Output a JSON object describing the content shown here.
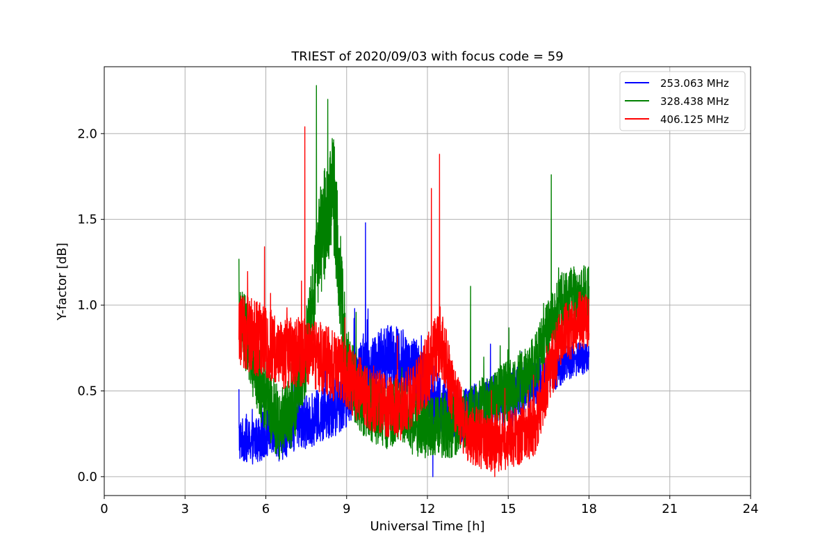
{
  "chart_data": {
    "type": "line",
    "title": "TRIEST of 2020/09/03 with focus code = 59",
    "xlabel": "Universal Time [h]",
    "ylabel": "Y-factor [dB]",
    "xlim": [
      0,
      24
    ],
    "ylim": [
      -0.11,
      2.39
    ],
    "xticks": [
      0,
      3,
      6,
      9,
      12,
      15,
      18,
      21,
      24
    ],
    "yticks": [
      0.0,
      0.5,
      1.0,
      1.5,
      2.0
    ],
    "xtick_labels": [
      "0",
      "3",
      "6",
      "9",
      "12",
      "15",
      "18",
      "21",
      "24"
    ],
    "ytick_labels": [
      "0.0",
      "0.5",
      "1.0",
      "1.5",
      "2.0"
    ],
    "grid": true,
    "legend_position": "top-right",
    "series": [
      {
        "name": "253.063 MHz",
        "color": "#0000ff",
        "x": [
          5.0,
          5.5,
          6.0,
          6.5,
          7.0,
          7.5,
          8.0,
          8.5,
          9.0,
          9.5,
          10.0,
          10.5,
          11.0,
          11.5,
          12.0,
          12.5,
          13.0,
          13.5,
          14.0,
          14.5,
          15.0,
          15.5,
          16.0,
          16.5,
          17.0,
          17.5,
          18.0
        ],
        "y": [
          0.22,
          0.2,
          0.25,
          0.23,
          0.3,
          0.32,
          0.35,
          0.4,
          0.48,
          0.6,
          0.65,
          0.7,
          0.68,
          0.62,
          0.55,
          0.4,
          0.38,
          0.35,
          0.38,
          0.42,
          0.45,
          0.5,
          0.55,
          0.6,
          0.65,
          0.68,
          0.7
        ],
        "noise": [
          0.08,
          0.08,
          0.09,
          0.09,
          0.1,
          0.1,
          0.1,
          0.11,
          0.12,
          0.12,
          0.12,
          0.12,
          0.12,
          0.12,
          0.13,
          0.12,
          0.12,
          0.11,
          0.11,
          0.11,
          0.11,
          0.1,
          0.09,
          0.08,
          0.07,
          0.06,
          0.06
        ],
        "spikes": [
          [
            5.0,
            0.51
          ],
          [
            9.7,
            1.48
          ],
          [
            12.2,
            0.0
          ],
          [
            9.3,
            0.98
          ]
        ]
      },
      {
        "name": "328.438 MHz",
        "color": "#008000",
        "x": [
          5.0,
          5.5,
          6.0,
          6.5,
          7.0,
          7.5,
          8.0,
          8.5,
          9.0,
          9.5,
          10.0,
          10.5,
          11.0,
          11.5,
          12.0,
          12.5,
          13.0,
          13.5,
          14.0,
          14.5,
          15.0,
          15.5,
          16.0,
          16.5,
          17.0,
          17.5,
          18.0
        ],
        "y": [
          0.95,
          0.7,
          0.45,
          0.3,
          0.38,
          0.7,
          1.35,
          1.7,
          0.65,
          0.45,
          0.38,
          0.35,
          0.4,
          0.3,
          0.28,
          0.3,
          0.3,
          0.35,
          0.4,
          0.45,
          0.5,
          0.55,
          0.65,
          0.85,
          1.0,
          1.05,
          1.05
        ],
        "noise": [
          0.14,
          0.14,
          0.14,
          0.13,
          0.13,
          0.15,
          0.2,
          0.22,
          0.15,
          0.12,
          0.12,
          0.12,
          0.12,
          0.12,
          0.12,
          0.12,
          0.12,
          0.11,
          0.11,
          0.11,
          0.11,
          0.11,
          0.11,
          0.12,
          0.12,
          0.12,
          0.12
        ],
        "spikes": [
          [
            7.88,
            2.28
          ],
          [
            8.3,
            2.2
          ],
          [
            13.6,
            1.11
          ],
          [
            16.6,
            1.76
          ],
          [
            5.0,
            1.27
          ]
        ]
      },
      {
        "name": "406.125 MHz",
        "color": "#ff0000",
        "x": [
          5.0,
          5.5,
          6.0,
          6.5,
          7.0,
          7.5,
          8.0,
          8.5,
          9.0,
          9.5,
          10.0,
          10.5,
          11.0,
          11.5,
          12.0,
          12.5,
          13.0,
          13.5,
          14.0,
          14.5,
          15.0,
          15.5,
          16.0,
          16.5,
          17.0,
          17.5,
          18.0
        ],
        "y": [
          0.88,
          0.82,
          0.78,
          0.72,
          0.72,
          0.72,
          0.7,
          0.65,
          0.6,
          0.5,
          0.45,
          0.42,
          0.4,
          0.48,
          0.62,
          0.8,
          0.45,
          0.25,
          0.22,
          0.2,
          0.22,
          0.25,
          0.3,
          0.6,
          0.8,
          0.9,
          0.92
        ],
        "noise": [
          0.14,
          0.14,
          0.13,
          0.13,
          0.13,
          0.13,
          0.13,
          0.13,
          0.13,
          0.13,
          0.12,
          0.12,
          0.12,
          0.12,
          0.13,
          0.13,
          0.12,
          0.11,
          0.11,
          0.11,
          0.11,
          0.11,
          0.11,
          0.12,
          0.12,
          0.11,
          0.1
        ],
        "spikes": [
          [
            7.45,
            2.04
          ],
          [
            12.15,
            1.68
          ],
          [
            12.45,
            1.88
          ],
          [
            5.95,
            1.34
          ],
          [
            14.5,
            0.0
          ]
        ]
      }
    ]
  }
}
